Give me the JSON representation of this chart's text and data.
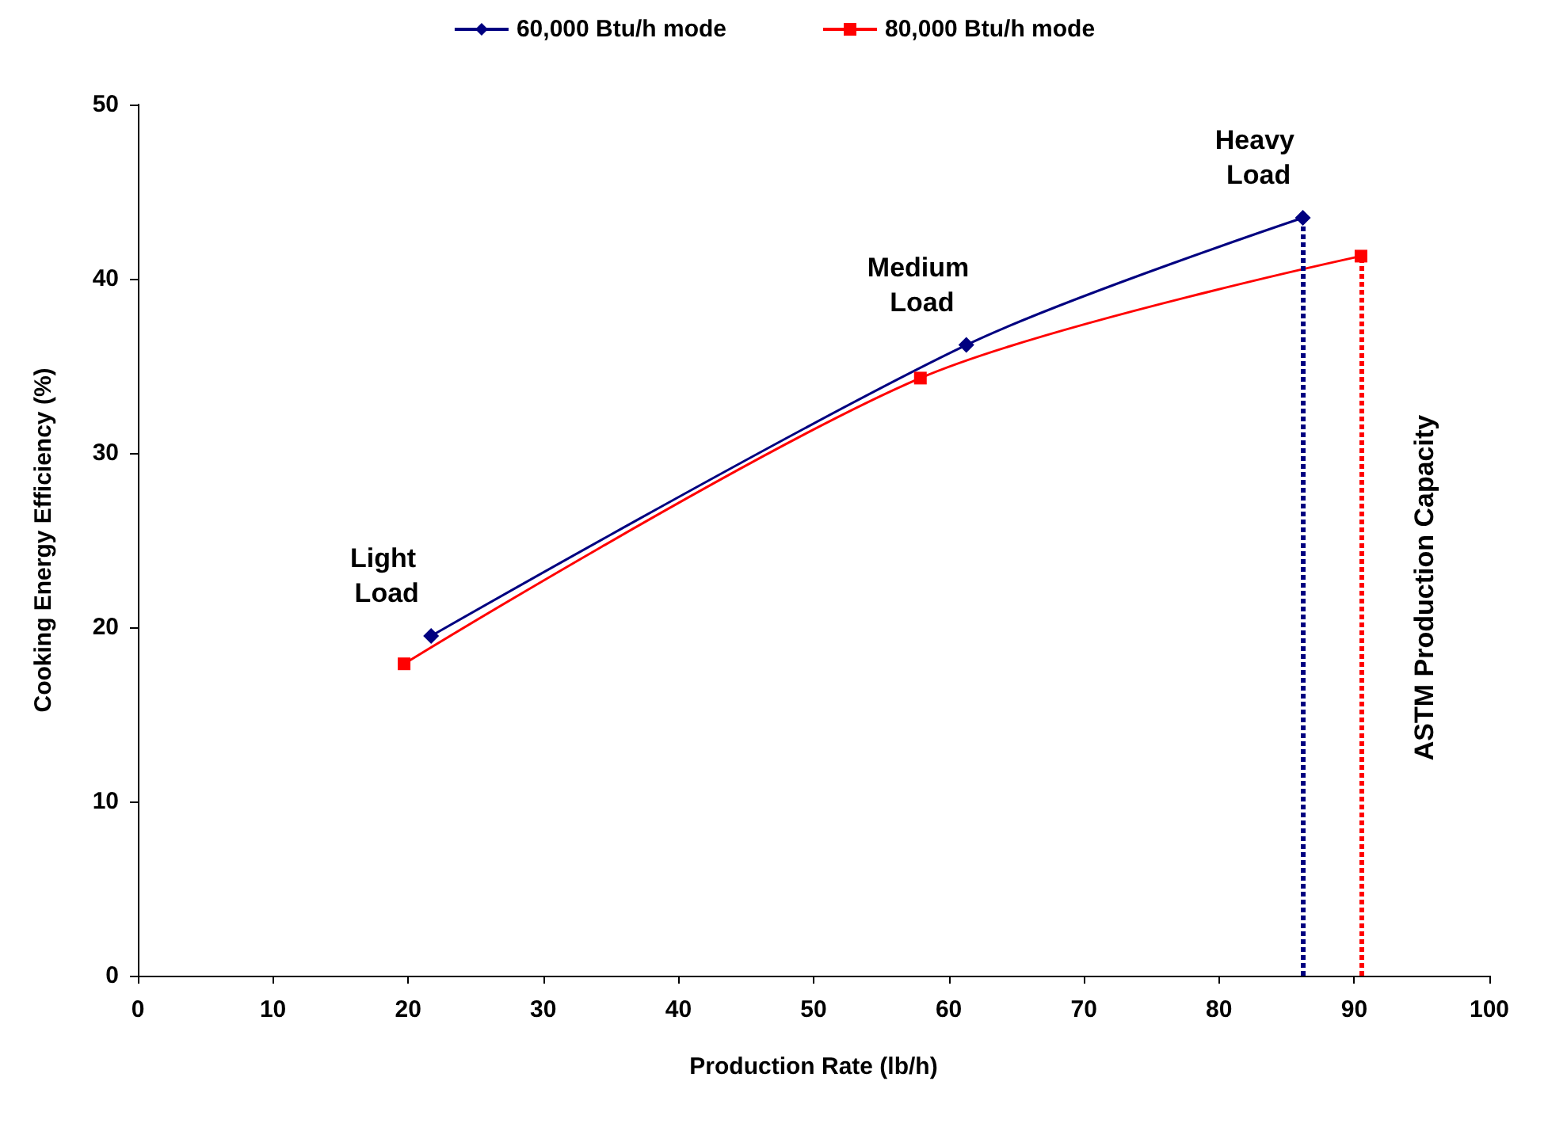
{
  "chart_data": {
    "type": "line",
    "xlabel": "Production Rate (lb/h)",
    "ylabel": "Cooking Energy Efficiency (%)",
    "series": [
      {
        "name": "60,000 Btu/h mode",
        "color": "#000080",
        "marker": "diamond",
        "x": [
          21.7,
          61.3,
          86.2
        ],
        "values": [
          19.5,
          36.2,
          43.5
        ]
      },
      {
        "name": "80,000 Btu/h mode",
        "color": "#ff0000",
        "marker": "square",
        "x": [
          19.7,
          57.9,
          90.5
        ],
        "values": [
          17.9,
          34.3,
          41.3
        ]
      }
    ],
    "xlim": [
      0,
      100
    ],
    "xticks": [
      0,
      10,
      20,
      30,
      40,
      50,
      60,
      70,
      80,
      90,
      100
    ],
    "ylim": [
      0,
      50
    ],
    "yticks": [
      0,
      10,
      20,
      30,
      40,
      50
    ],
    "ref_lines": [
      {
        "axis": "x",
        "value": 86.2,
        "label": null,
        "color": "#000080",
        "line_style": "dotted"
      },
      {
        "axis": "x",
        "value": 90.5,
        "label": "ASTM Production Capacity",
        "color": "#ff0000",
        "line_style": "dotted"
      }
    ],
    "annotations": [
      {
        "text": "Light Load",
        "x": 21.7,
        "y": 19.5
      },
      {
        "text": "Medium Load",
        "x": 61.3,
        "y": 36.2
      },
      {
        "text": "Heavy Load",
        "x": 86.2,
        "y": 43.5
      }
    ],
    "legend": "top",
    "grid": false
  }
}
